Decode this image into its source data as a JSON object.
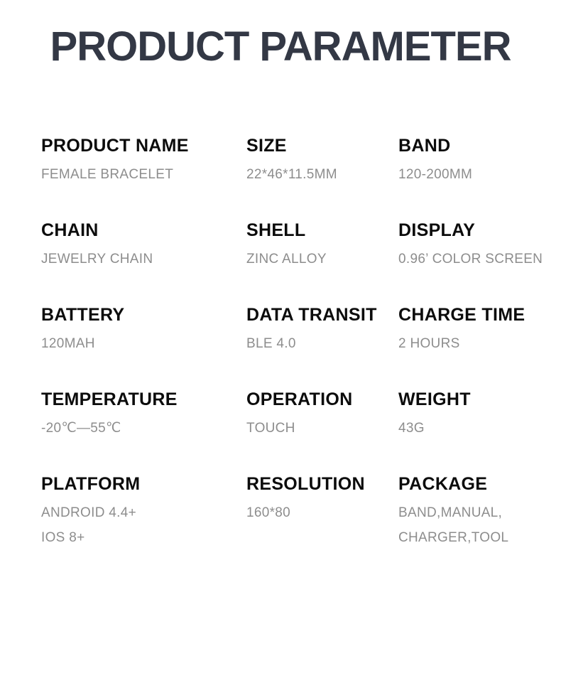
{
  "page": {
    "title": "PRODUCT PARAMETER",
    "colors": {
      "background": "#ffffff",
      "title_text": "#333845",
      "label_text": "#0c0c0c",
      "value_text": "#8d8d8d"
    }
  },
  "parameters": [
    {
      "label": "PRODUCT NAME",
      "lines": [
        "FEMALE BRACELET"
      ]
    },
    {
      "label": "SIZE",
      "lines": [
        "22*46*11.5MM"
      ]
    },
    {
      "label": "BAND",
      "lines": [
        "120-200MM"
      ]
    },
    {
      "label": "CHAIN",
      "lines": [
        "JEWELRY CHAIN"
      ]
    },
    {
      "label": "SHELL",
      "lines": [
        "ZINC ALLOY"
      ]
    },
    {
      "label": "DISPLAY",
      "lines": [
        "0.96’ COLOR SCREEN"
      ]
    },
    {
      "label": "BATTERY",
      "lines": [
        "120MAH"
      ]
    },
    {
      "label": "DATA TRANSIT",
      "lines": [
        "BLE 4.0"
      ]
    },
    {
      "label": "CHARGE TIME",
      "lines": [
        "2 HOURS"
      ]
    },
    {
      "label": "TEMPERATURE",
      "lines": [
        "-20℃—55℃"
      ]
    },
    {
      "label": "OPERATION",
      "lines": [
        "TOUCH"
      ]
    },
    {
      "label": "WEIGHT",
      "lines": [
        "43G"
      ]
    },
    {
      "label": "PLATFORM",
      "lines": [
        "ANDROID 4.4+",
        "IOS 8+"
      ]
    },
    {
      "label": "RESOLUTION",
      "lines": [
        "160*80"
      ]
    },
    {
      "label": "PACKAGE",
      "lines": [
        "BAND,MANUAL,",
        "CHARGER,TOOL"
      ]
    }
  ]
}
